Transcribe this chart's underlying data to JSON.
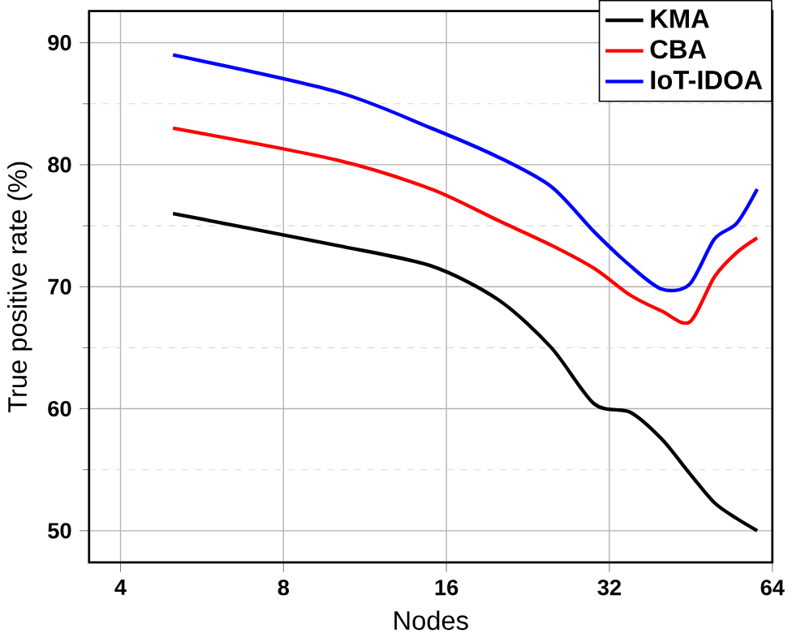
{
  "chart_data": {
    "type": "line",
    "xlabel": "Nodes",
    "ylabel": "True positive rate (%)",
    "log": "x",
    "xlim": [
      3.5,
      64
    ],
    "ylim": [
      47.4,
      92.6
    ],
    "xticks": [
      4,
      8,
      16,
      32,
      64
    ],
    "yticks": [
      50,
      60,
      70,
      80,
      90
    ],
    "grid": true,
    "legend": "top right",
    "line_style": "solid",
    "marker": "none",
    "x": [
      5,
      10,
      15,
      20,
      25,
      30,
      35,
      40,
      45,
      50,
      55,
      60
    ],
    "series": [
      {
        "name": "KMA",
        "color": "#000000",
        "values": [
          76,
          73.4,
          71.7,
          68.9,
          65,
          60.4,
          59.7,
          57.5,
          54.7,
          52.3,
          51,
          50
        ]
      },
      {
        "name": "CBA",
        "color": "#ff0000",
        "values": [
          83,
          80.4,
          78,
          75.4,
          73.4,
          71.5,
          69.3,
          68,
          67.1,
          70.8,
          72.8,
          74
        ]
      },
      {
        "name": "IoT-IDOA",
        "color": "#0000ff",
        "values": [
          89,
          86,
          83,
          80.6,
          78.2,
          74.5,
          71.7,
          69.8,
          70.2,
          73.9,
          75.2,
          78
        ]
      }
    ]
  }
}
